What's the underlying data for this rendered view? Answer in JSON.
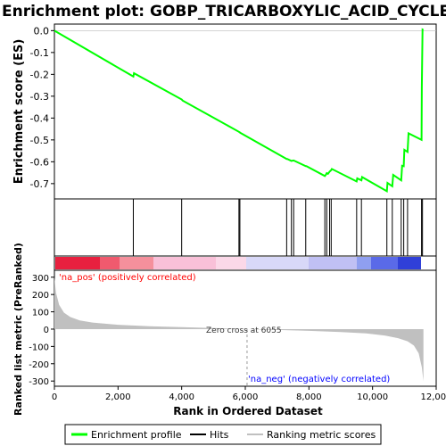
{
  "chart_data": {
    "type": "line",
    "title": "Enrichment plot: GOBP_TRICARBOXYLIC_ACID_CYCLE",
    "xlabel": "Rank in Ordered Dataset",
    "ylabel_top": "Enrichment score (ES)",
    "ylabel_bottom": "Ranked list metric (PreRanked)",
    "xlim": [
      0,
      12000
    ],
    "ylim_top": [
      -0.77,
      0.03
    ],
    "ylim_bottom": [
      -330,
      340
    ],
    "x_ticks": [
      0,
      2000,
      4000,
      6000,
      8000,
      10000,
      12000
    ],
    "x_tick_labels": [
      "0",
      "2,000",
      "4,000",
      "6,000",
      "8,000",
      "10,000",
      "12,000"
    ],
    "y_ticks_top": [
      0.0,
      -0.1,
      -0.2,
      -0.3,
      -0.4,
      -0.5,
      -0.6,
      -0.7
    ],
    "y_tick_labels_top": [
      "0.0",
      "-0.1",
      "-0.2",
      "-0.3",
      "-0.4",
      "-0.5",
      "-0.6",
      "-0.7"
    ],
    "y_ticks_bottom": [
      300,
      200,
      100,
      0,
      -100,
      -200,
      -300
    ],
    "y_tick_labels_bottom": [
      "300",
      "200",
      "100",
      "0",
      "-100",
      "-200",
      "-300"
    ],
    "enrichment_profile": {
      "x": [
        0,
        2480,
        2500,
        4000,
        4030,
        5800,
        5830,
        5850,
        7300,
        7320,
        7450,
        7480,
        7520,
        7900,
        7920,
        8500,
        8530,
        8560,
        8600,
        8650,
        8700,
        8720,
        9500,
        9520,
        9650,
        9670,
        10450,
        10470,
        10620,
        10650,
        10900,
        10930,
        10980,
        11000,
        11100,
        11130,
        11540,
        11550,
        11570,
        11600
      ],
      "y": [
        0.0,
        -0.21,
        -0.195,
        -0.315,
        -0.32,
        -0.463,
        -0.466,
        -0.468,
        -0.587,
        -0.587,
        -0.596,
        -0.595,
        -0.594,
        -0.62,
        -0.62,
        -0.665,
        -0.66,
        -0.652,
        -0.655,
        -0.645,
        -0.638,
        -0.633,
        -0.69,
        -0.676,
        -0.685,
        -0.67,
        -0.735,
        -0.697,
        -0.712,
        -0.66,
        -0.685,
        -0.618,
        -0.62,
        -0.545,
        -0.555,
        -0.47,
        -0.5,
        -0.26,
        0.005,
        0.003
      ]
    },
    "hits": [
      2480,
      4000,
      5800,
      5830,
      7300,
      7450,
      7520,
      7900,
      8500,
      8560,
      8650,
      8700,
      9500,
      9650,
      10450,
      10620,
      10900,
      10980,
      11100,
      11540,
      11570
    ],
    "ranking_metric": {
      "x": [
        0,
        50,
        150,
        300,
        500,
        800,
        1200,
        2000,
        3000,
        4000,
        5000,
        6055,
        7000,
        8000,
        9000,
        9800,
        10400,
        10800,
        11100,
        11300,
        11450,
        11550,
        11600
      ],
      "y": [
        300,
        210,
        140,
        95,
        70,
        50,
        38,
        25,
        17,
        11,
        6,
        0,
        -5,
        -10,
        -17,
        -25,
        -38,
        -52,
        -70,
        -95,
        -140,
        -220,
        -300
      ]
    },
    "zero_cross_label": "Zero cross at 6055",
    "zero_cross": 6055,
    "pos_label": "'na_pos' (positively correlated)",
    "neg_label": "'na_neg' (negatively correlated)",
    "legend": [
      {
        "label": "Enrichment profile",
        "color": "#00ff00"
      },
      {
        "label": "Hits",
        "color": "#000000"
      },
      {
        "label": "Ranking metric scores",
        "color": "#c0c0c0"
      }
    ],
    "legend_placement": "bottom",
    "colors": {
      "profile": "#00ff00",
      "hits": "#000000",
      "metric": "#c0c0c0",
      "pos_text": "#ff0000",
      "neg_text": "#0000ff"
    }
  }
}
